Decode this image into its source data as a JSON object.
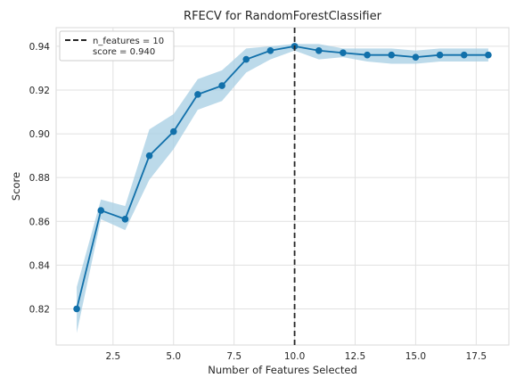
{
  "chart_data": {
    "type": "line",
    "title": "RFECV for RandomForestClassifier",
    "xlabel": "Number of Features Selected",
    "ylabel": "Score",
    "xlim": [
      0.15,
      18.85
    ],
    "ylim": [
      0.8035,
      0.9485
    ],
    "xticks": [
      2.5,
      5.0,
      7.5,
      10.0,
      12.5,
      15.0,
      17.5
    ],
    "xtick_labels": [
      "2.5",
      "5.0",
      "7.5",
      "10.0",
      "12.5",
      "15.0",
      "17.5"
    ],
    "yticks": [
      0.82,
      0.84,
      0.86,
      0.88,
      0.9,
      0.92,
      0.94
    ],
    "ytick_labels": [
      "0.82",
      "0.84",
      "0.86",
      "0.88",
      "0.90",
      "0.92",
      "0.94"
    ],
    "grid": true,
    "legend_position": "top-left",
    "x": [
      1,
      2,
      3,
      4,
      5,
      6,
      7,
      8,
      9,
      10,
      11,
      12,
      13,
      14,
      15,
      16,
      17,
      18
    ],
    "series": [
      {
        "values": [
          0.82,
          0.865,
          0.861,
          0.89,
          0.901,
          0.918,
          0.922,
          0.934,
          0.938,
          0.94,
          0.938,
          0.937,
          0.936,
          0.936,
          0.935,
          0.936,
          0.936,
          0.936
        ],
        "band_upper": [
          0.83,
          0.87,
          0.867,
          0.902,
          0.909,
          0.925,
          0.929,
          0.939,
          0.94,
          0.941,
          0.941,
          0.939,
          0.939,
          0.939,
          0.938,
          0.939,
          0.939,
          0.939
        ],
        "band_lower": [
          0.809,
          0.861,
          0.856,
          0.879,
          0.893,
          0.911,
          0.915,
          0.928,
          0.934,
          0.938,
          0.934,
          0.935,
          0.933,
          0.932,
          0.932,
          0.933,
          0.933,
          0.933
        ],
        "color": "#1170aa",
        "band_color": "#a6cee3"
      }
    ],
    "vline": {
      "x": 10,
      "label_line1": "n_features = 10",
      "label_line2": "score = 0.940",
      "color": "#262626"
    }
  }
}
